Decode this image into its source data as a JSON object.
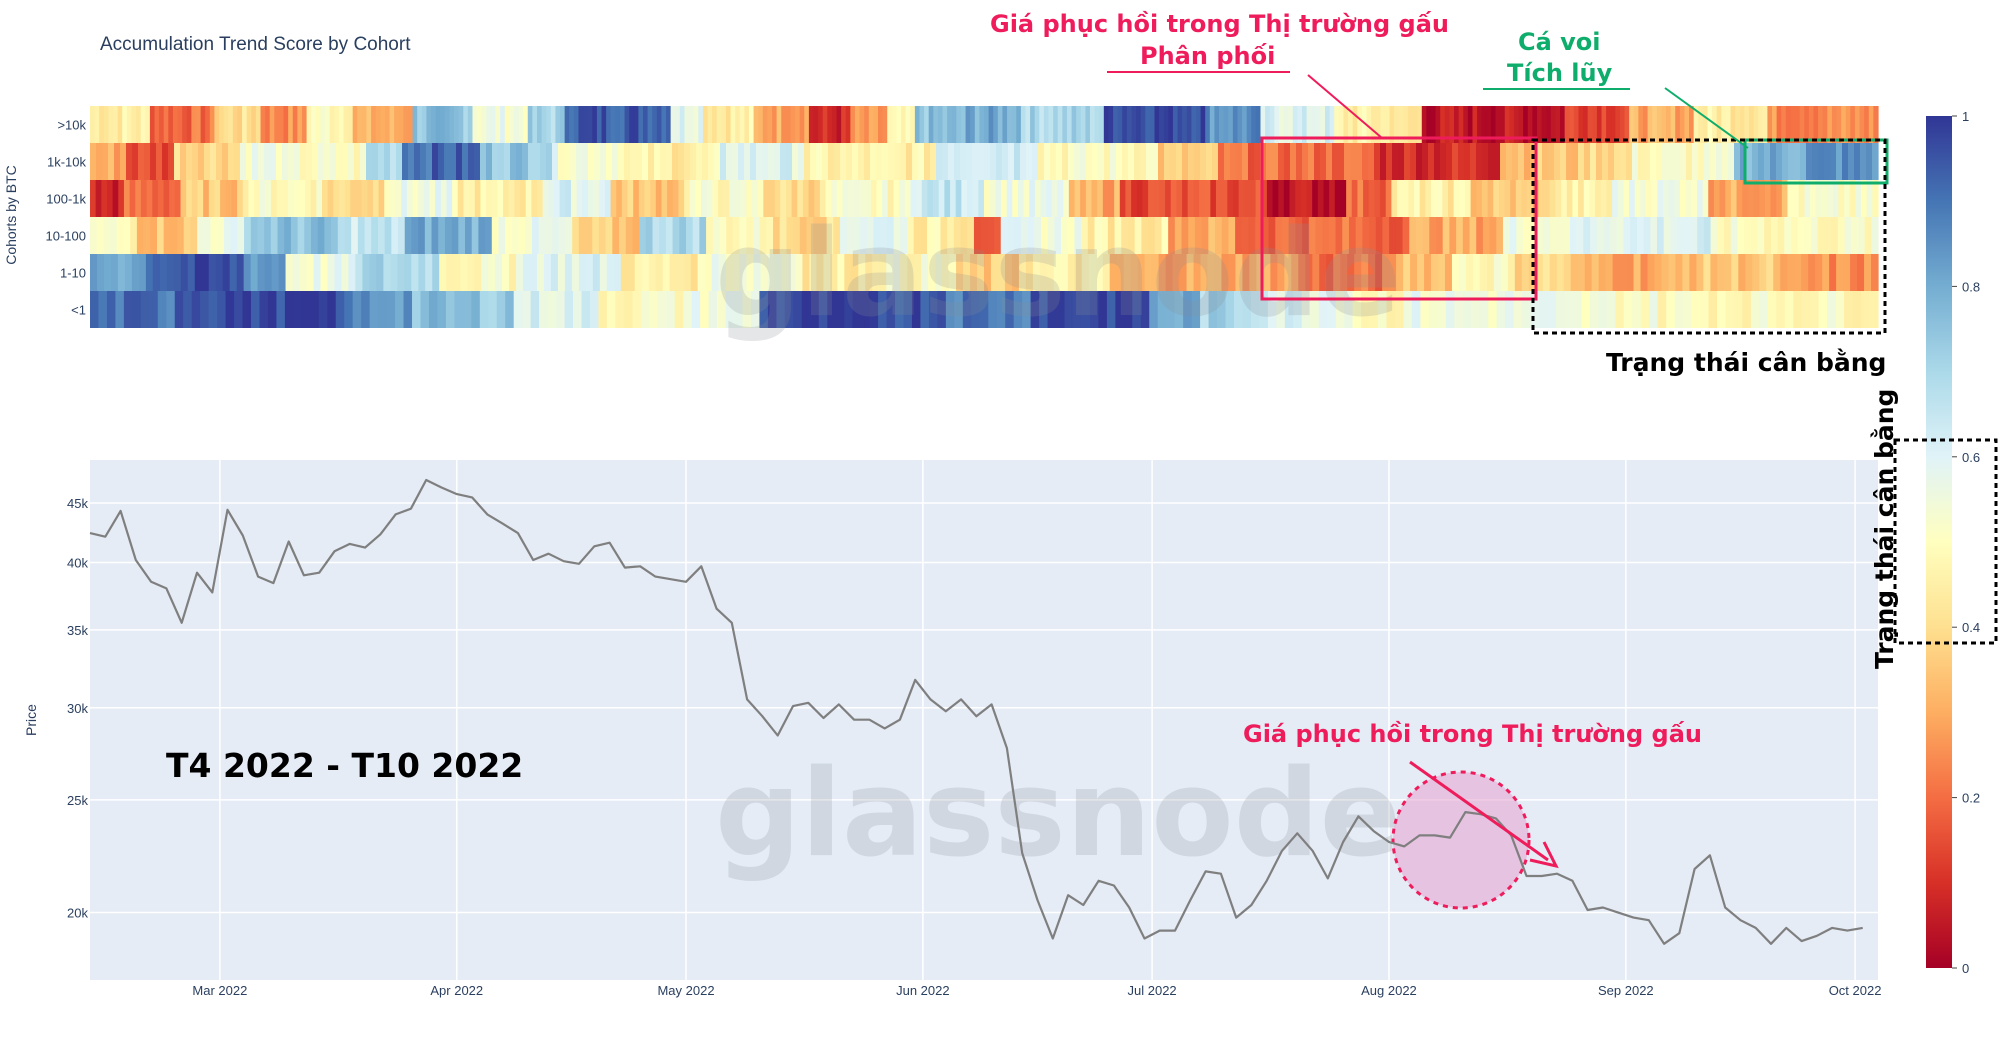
{
  "chart_data": [
    {
      "type": "heatmap",
      "title": "Accumulation Trend Score by Cohort",
      "ylabel": "Cohorts by BTC",
      "rows": [
        ">10k",
        "1k-10k",
        "100-1k",
        "10-100",
        "1-10",
        "<1"
      ],
      "colorbar": {
        "ticks": [
          "0",
          "0.2",
          "0.4",
          "0.6",
          "0.8",
          "1"
        ],
        "range": [
          0,
          1
        ]
      },
      "colorscale": [
        "#a50026",
        "#d73027",
        "#f46d43",
        "#fdae61",
        "#fee090",
        "#ffffbf",
        "#e0f3f8",
        "#abd9e9",
        "#74add1",
        "#4575b4",
        "#313695"
      ],
      "segments": [
        {
          "row": ">10k",
          "values": [
            [
              0.45,
              13
            ],
            [
              0.2,
              14
            ],
            [
              0.4,
              10
            ],
            [
              0.25,
              10
            ],
            [
              0.5,
              10
            ],
            [
              0.3,
              13
            ],
            [
              0.75,
              13
            ],
            [
              0.55,
              12
            ],
            [
              0.7,
              8
            ],
            [
              0.95,
              23
            ],
            [
              0.6,
              7
            ],
            [
              0.45,
              11
            ],
            [
              0.3,
              12
            ],
            [
              0.08,
              9
            ],
            [
              0.25,
              8
            ],
            [
              0.45,
              6
            ],
            [
              0.75,
              11
            ],
            [
              0.8,
              12
            ],
            [
              0.7,
              18
            ],
            [
              0.98,
              22
            ],
            [
              0.85,
              12
            ],
            [
              0.6,
              16
            ],
            [
              0.45,
              14
            ],
            [
              0.4,
              5
            ],
            [
              0.05,
              31
            ],
            [
              0.15,
              14
            ],
            [
              0.3,
              14
            ],
            [
              0.45,
              16
            ],
            [
              0.25,
              24
            ]
          ]
        },
        {
          "row": "1k-10k",
          "values": [
            [
              0.3,
              6
            ],
            [
              0.15,
              8
            ],
            [
              0.4,
              11
            ],
            [
              0.55,
              7
            ],
            [
              0.5,
              14
            ],
            [
              0.7,
              6
            ],
            [
              0.92,
              13
            ],
            [
              0.75,
              12
            ],
            [
              0.55,
              12
            ],
            [
              0.45,
              16
            ],
            [
              0.6,
              14
            ],
            [
              0.45,
              22
            ],
            [
              0.65,
              17
            ],
            [
              0.5,
              20
            ],
            [
              0.35,
              10
            ],
            [
              0.2,
              26
            ],
            [
              0.1,
              21
            ],
            [
              0.35,
              14
            ],
            [
              0.4,
              8
            ],
            [
              0.5,
              17
            ],
            [
              0.8,
              12
            ],
            [
              0.85,
              12
            ]
          ]
        },
        {
          "row": "100-1k",
          "values": [
            [
              0.08,
              6
            ],
            [
              0.2,
              10
            ],
            [
              0.35,
              11
            ],
            [
              0.5,
              14
            ],
            [
              0.4,
              11
            ],
            [
              0.55,
              12
            ],
            [
              0.45,
              16
            ],
            [
              0.6,
              12
            ],
            [
              0.35,
              13
            ],
            [
              0.5,
              14
            ],
            [
              0.4,
              11
            ],
            [
              0.5,
              15
            ],
            [
              0.65,
              13
            ],
            [
              0.55,
              15
            ],
            [
              0.3,
              9
            ],
            [
              0.15,
              26
            ],
            [
              0.05,
              14
            ],
            [
              0.2,
              8
            ],
            [
              0.45,
              14
            ],
            [
              0.35,
              14
            ],
            [
              0.45,
              11
            ],
            [
              0.55,
              17
            ],
            [
              0.3,
              14
            ],
            [
              0.5,
              16
            ]
          ]
        },
        {
          "row": "10-100",
          "values": [
            [
              0.5,
              7
            ],
            [
              0.35,
              9
            ],
            [
              0.55,
              7
            ],
            [
              0.75,
              14
            ],
            [
              0.65,
              10
            ],
            [
              0.8,
              13
            ],
            [
              0.55,
              12
            ],
            [
              0.35,
              10
            ],
            [
              0.7,
              10
            ],
            [
              0.5,
              10
            ],
            [
              0.4,
              10
            ],
            [
              0.6,
              10
            ],
            [
              0.45,
              10
            ],
            [
              0.2,
              4
            ],
            [
              0.55,
              12
            ],
            [
              0.45,
              13
            ],
            [
              0.3,
              10
            ],
            [
              0.2,
              26
            ],
            [
              0.3,
              14
            ],
            [
              0.55,
              11
            ],
            [
              0.6,
              20
            ],
            [
              0.5,
              25
            ]
          ]
        },
        {
          "row": "1-10",
          "values": [
            [
              0.82,
              8
            ],
            [
              0.95,
              14
            ],
            [
              0.85,
              6
            ],
            [
              0.55,
              10
            ],
            [
              0.7,
              12
            ],
            [
              0.5,
              11
            ],
            [
              0.6,
              15
            ],
            [
              0.45,
              12
            ],
            [
              0.55,
              14
            ],
            [
              0.45,
              10
            ],
            [
              0.5,
              12
            ],
            [
              0.35,
              9
            ],
            [
              0.45,
              13
            ],
            [
              0.3,
              27
            ],
            [
              0.2,
              14
            ],
            [
              0.35,
              8
            ],
            [
              0.5,
              8
            ],
            [
              0.4,
              9
            ],
            [
              0.3,
              16
            ],
            [
              0.35,
              14
            ],
            [
              0.25,
              14
            ]
          ]
        },
        {
          "row": "<1",
          "values": [
            [
              0.9,
              10
            ],
            [
              0.98,
              20
            ],
            [
              0.85,
              8
            ],
            [
              0.75,
              12
            ],
            [
              0.6,
              10
            ],
            [
              0.5,
              10
            ],
            [
              0.55,
              9
            ],
            [
              0.97,
              22
            ],
            [
              0.9,
              10
            ],
            [
              0.98,
              14
            ],
            [
              0.8,
              6
            ],
            [
              0.7,
              8
            ],
            [
              0.6,
              10
            ],
            [
              0.5,
              6
            ],
            [
              0.55,
              18
            ],
            [
              0.52,
              12
            ],
            [
              0.5,
              26
            ]
          ]
        }
      ]
    },
    {
      "type": "line",
      "ylabel": "Price",
      "yaxis_scale": "log",
      "ylim": [
        17500,
        49000
      ],
      "xlim": [
        "2022-02-12",
        "2022-10-04"
      ],
      "ytick_values": [
        20000,
        25000,
        30000,
        35000,
        40000,
        45000
      ],
      "ytick_labels": [
        "20k",
        "25k",
        "30k",
        "35k",
        "40k",
        "45k"
      ],
      "xtick_values": [
        "2022-03-01",
        "2022-04-01",
        "2022-05-01",
        "2022-06-01",
        "2022-07-01",
        "2022-08-01",
        "2022-09-01",
        "2022-10-01"
      ],
      "xtick_labels": [
        "Mar 2022",
        "Apr 2022",
        "May 2022",
        "Jun 2022",
        "Jul 2022",
        "Aug 2022",
        "Sep 2022",
        "Oct 2022"
      ],
      "series": [
        {
          "color": "#7f7f7f",
          "x": [
            "2022-02-12",
            "2022-02-14",
            "2022-02-16",
            "2022-02-18",
            "2022-02-20",
            "2022-02-22",
            "2022-02-24",
            "2022-02-26",
            "2022-02-28",
            "2022-03-02",
            "2022-03-04",
            "2022-03-06",
            "2022-03-08",
            "2022-03-10",
            "2022-03-12",
            "2022-03-14",
            "2022-03-16",
            "2022-03-18",
            "2022-03-20",
            "2022-03-22",
            "2022-03-24",
            "2022-03-26",
            "2022-03-28",
            "2022-03-30",
            "2022-04-01",
            "2022-04-03",
            "2022-04-05",
            "2022-04-07",
            "2022-04-09",
            "2022-04-11",
            "2022-04-13",
            "2022-04-15",
            "2022-04-17",
            "2022-04-19",
            "2022-04-21",
            "2022-04-23",
            "2022-04-25",
            "2022-04-27",
            "2022-04-29",
            "2022-05-01",
            "2022-05-03",
            "2022-05-05",
            "2022-05-07",
            "2022-05-09",
            "2022-05-11",
            "2022-05-13",
            "2022-05-15",
            "2022-05-17",
            "2022-05-19",
            "2022-05-21",
            "2022-05-23",
            "2022-05-25",
            "2022-05-27",
            "2022-05-29",
            "2022-05-31",
            "2022-06-02",
            "2022-06-04",
            "2022-06-06",
            "2022-06-08",
            "2022-06-10",
            "2022-06-12",
            "2022-06-14",
            "2022-06-16",
            "2022-06-18",
            "2022-06-20",
            "2022-06-22",
            "2022-06-24",
            "2022-06-26",
            "2022-06-28",
            "2022-06-30",
            "2022-07-02",
            "2022-07-04",
            "2022-07-06",
            "2022-07-08",
            "2022-07-10",
            "2022-07-12",
            "2022-07-14",
            "2022-07-16",
            "2022-07-18",
            "2022-07-20",
            "2022-07-22",
            "2022-07-24",
            "2022-07-26",
            "2022-07-28",
            "2022-07-30",
            "2022-08-01",
            "2022-08-03",
            "2022-08-05",
            "2022-08-07",
            "2022-08-09",
            "2022-08-11",
            "2022-08-13",
            "2022-08-15",
            "2022-08-17",
            "2022-08-19",
            "2022-08-21",
            "2022-08-23",
            "2022-08-25",
            "2022-08-27",
            "2022-08-29",
            "2022-08-31",
            "2022-09-02",
            "2022-09-04",
            "2022-09-06",
            "2022-09-08",
            "2022-09-10",
            "2022-09-12",
            "2022-09-14",
            "2022-09-16",
            "2022-09-18",
            "2022-09-20",
            "2022-09-22",
            "2022-09-24",
            "2022-09-26",
            "2022-09-28",
            "2022-09-30",
            "2022-10-02"
          ],
          "y": [
            42400,
            42100,
            44300,
            40200,
            38500,
            38000,
            35500,
            39200,
            37700,
            44400,
            42200,
            38900,
            38400,
            41700,
            39000,
            39200,
            40900,
            41500,
            41200,
            42300,
            44000,
            44500,
            47100,
            46400,
            45800,
            45500,
            44000,
            43200,
            42400,
            40200,
            40700,
            40100,
            39900,
            41300,
            41600,
            39600,
            39700,
            38900,
            38700,
            38500,
            39700,
            36500,
            35500,
            30500,
            29500,
            28400,
            30100,
            30300,
            29400,
            30200,
            29300,
            29300,
            28800,
            29300,
            31700,
            30500,
            29800,
            30500,
            29500,
            30200,
            27700,
            22500,
            20500,
            19000,
            20700,
            20300,
            21300,
            21100,
            20200,
            19000,
            19300,
            19300,
            20500,
            21700,
            21600,
            19800,
            20300,
            21300,
            22600,
            23400,
            22600,
            21400,
            23000,
            24200,
            23500,
            23000,
            22800,
            23300,
            23300,
            23200,
            24400,
            24300,
            24100,
            23300,
            21500,
            21500,
            21600,
            21300,
            20100,
            20200,
            20000,
            19800,
            19700,
            18800,
            19200,
            21800,
            22400,
            20200,
            19700,
            19400,
            18800,
            19400,
            18900,
            19100,
            19400,
            19300,
            19400
          ]
        }
      ]
    }
  ],
  "annotations": {
    "bear_rally_top_line1": "Giá phục hồi trong Thị trường gấu",
    "bear_rally_top_line2": "Phân phối",
    "whale_line1": "Cá voi",
    "whale_line2": "Tích lũy",
    "balance_state_horizontal": "Trạng thái cân bằng",
    "balance_state_vertical": "Trạng thái cân bằng",
    "period_label": "T4 2022 - T10 2022",
    "bear_rally_price": "Giá phục hồi trong Thị trường gấu"
  },
  "watermark": "glassnode"
}
